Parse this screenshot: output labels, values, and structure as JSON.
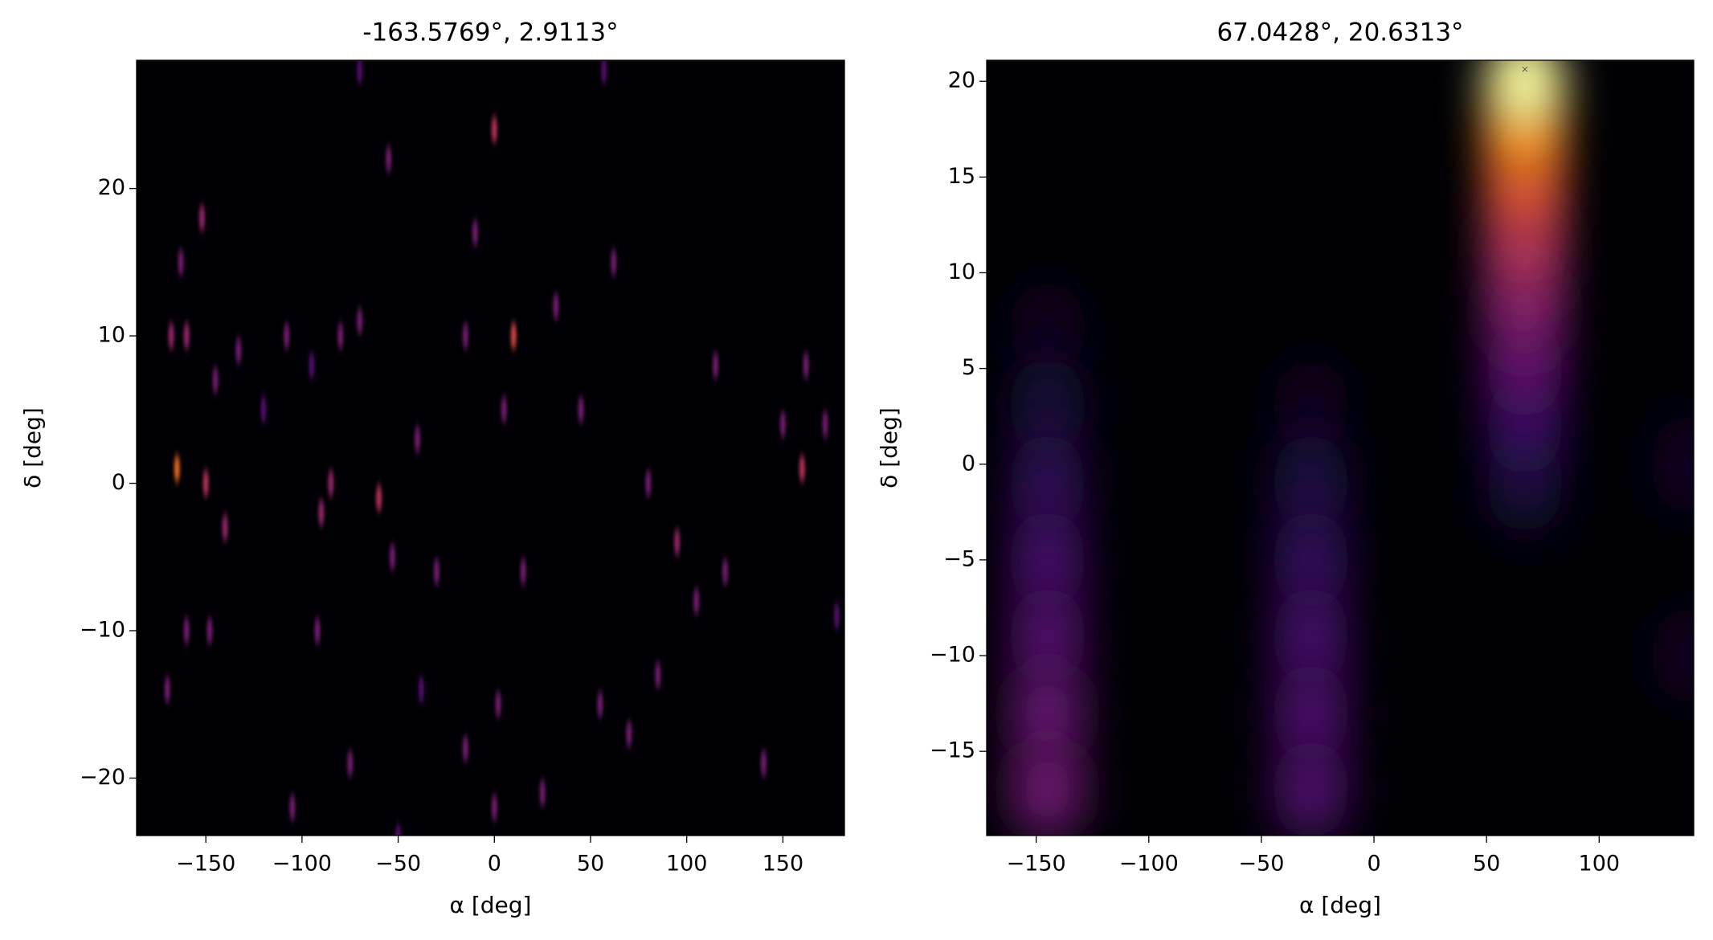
{
  "chart_data": [
    {
      "type": "heatmap",
      "title": "-163.5769°, 2.9113°",
      "xlabel": "α [deg]",
      "ylabel": "δ [deg]",
      "xlim": [
        -186,
        182
      ],
      "ylim": [
        -23.9,
        28.7
      ],
      "xticks": [
        {
          "value": -150,
          "label": "−150"
        },
        {
          "value": -100,
          "label": "−100"
        },
        {
          "value": -50,
          "label": "−50"
        },
        0,
        50,
        100,
        150
      ],
      "yticks": [
        {
          "value": -20,
          "label": "−20"
        },
        {
          "value": -10,
          "label": "−10"
        },
        0,
        10,
        20
      ],
      "x": [
        -165,
        -168,
        -160,
        -152,
        -163,
        -150,
        -145,
        -140,
        -133,
        -170,
        -160,
        -148,
        -120,
        -108,
        -105,
        -95,
        -92,
        -90,
        -85,
        -80,
        -75,
        -70,
        -70,
        -60,
        -55,
        -53,
        -40,
        -38,
        -30,
        -15,
        -15,
        -10,
        0,
        2,
        5,
        10,
        15,
        25,
        32,
        45,
        55,
        57,
        62,
        70,
        80,
        85,
        95,
        105,
        115,
        120,
        140,
        150,
        160,
        162,
        172,
        178,
        -50,
        0
      ],
      "y": [
        1,
        10,
        10,
        18,
        15,
        0,
        7,
        -3,
        9,
        -14,
        -10,
        -10,
        5,
        10,
        -22,
        8,
        -10,
        -2,
        0,
        10,
        -19,
        11,
        28,
        -1,
        22,
        -5,
        3,
        -14,
        -6,
        10,
        -18,
        17,
        24,
        -15,
        5,
        10,
        -6,
        -21,
        12,
        5,
        -15,
        28,
        15,
        -17,
        0,
        -13,
        -4,
        -8,
        8,
        -6,
        -19,
        4,
        1,
        8,
        4,
        -9,
        -24,
        -22
      ],
      "values": [
        0.8,
        0.5,
        0.5,
        0.5,
        0.4,
        0.6,
        0.4,
        0.5,
        0.4,
        0.4,
        0.4,
        0.4,
        0.3,
        0.4,
        0.4,
        0.3,
        0.4,
        0.5,
        0.5,
        0.4,
        0.4,
        0.4,
        0.3,
        0.6,
        0.4,
        0.4,
        0.4,
        0.3,
        0.4,
        0.4,
        0.4,
        0.4,
        0.6,
        0.4,
        0.4,
        0.7,
        0.4,
        0.4,
        0.4,
        0.4,
        0.4,
        0.3,
        0.4,
        0.4,
        0.4,
        0.4,
        0.5,
        0.4,
        0.4,
        0.4,
        0.4,
        0.4,
        0.6,
        0.4,
        0.4,
        0.3,
        0.3,
        0.4
      ]
    },
    {
      "type": "heatmap",
      "title": "67.0428°, 20.6313°",
      "xlabel": "α [deg]",
      "ylabel": "δ [deg]",
      "xlim": [
        -172,
        142
      ],
      "ylim": [
        -19.4,
        21.1
      ],
      "xticks": [
        {
          "value": -150,
          "label": "−150"
        },
        {
          "value": -100,
          "label": "−100"
        },
        {
          "value": -50,
          "label": "−50"
        },
        0,
        50,
        100
      ],
      "yticks": [
        {
          "value": -15,
          "label": "−15"
        },
        {
          "value": -10,
          "label": "−10"
        },
        {
          "value": -5,
          "label": "−5"
        },
        0,
        5,
        10,
        15,
        20
      ],
      "x": [
        -145,
        -145,
        -145,
        -145,
        -145,
        -145,
        -145,
        -28,
        -28,
        -28,
        -28,
        -28,
        -28,
        140,
        140,
        67,
        67,
        67,
        67,
        67,
        67,
        67,
        67
      ],
      "y": [
        7,
        3,
        -1,
        -5,
        -9,
        -13,
        -17,
        3,
        -1,
        -5,
        -9,
        -13,
        -17,
        0,
        -10,
        -1,
        2,
        5,
        8,
        11,
        14,
        17,
        20
      ],
      "values": [
        0.05,
        0.1,
        0.18,
        0.25,
        0.3,
        0.35,
        0.38,
        0.05,
        0.12,
        0.2,
        0.25,
        0.27,
        0.28,
        0.06,
        0.05,
        0.1,
        0.2,
        0.32,
        0.42,
        0.55,
        0.7,
        0.85,
        1.0
      ],
      "marker": {
        "x": 67.0428,
        "y": 20.6313
      }
    }
  ]
}
